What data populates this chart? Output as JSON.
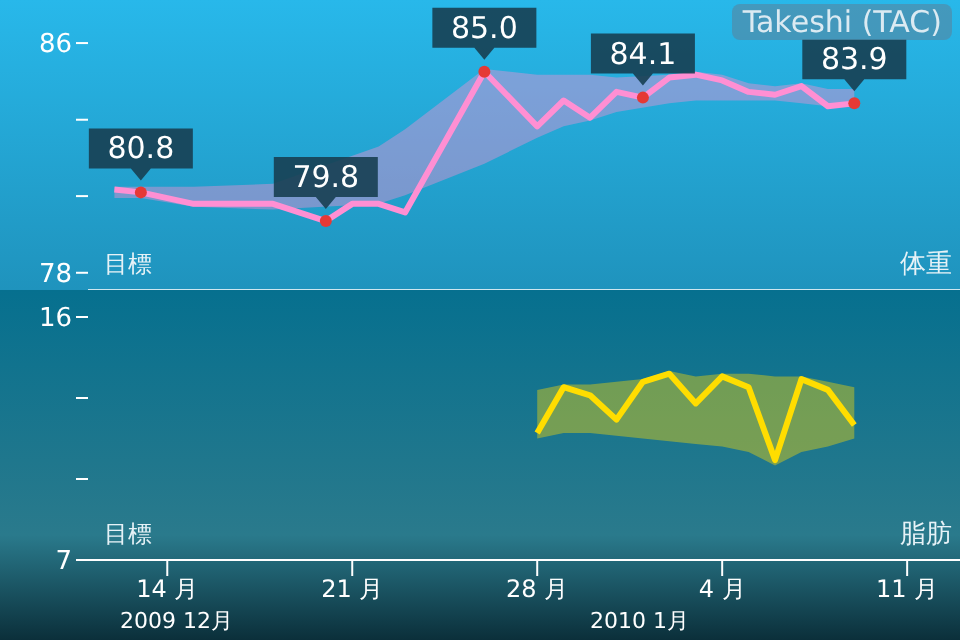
{
  "chart_data": [
    {
      "type": "line",
      "title": "Takeshi (TAC)",
      "ylabel": "体重",
      "annotations": [
        "目標"
      ],
      "tick_labels": "y",
      "grid": false,
      "legend": false,
      "x": [
        "2009-12-12",
        "2009-12-13",
        "2009-12-15",
        "2009-12-18",
        "2009-12-20",
        "2009-12-21",
        "2009-12-22",
        "2009-12-23",
        "2009-12-26",
        "2009-12-28",
        "2009-12-29",
        "2009-12-30",
        "2009-12-31",
        "2010-01-01",
        "2010-01-02",
        "2010-01-03",
        "2010-01-04",
        "2010-01-05",
        "2010-01-06",
        "2010-01-07",
        "2010-01-08",
        "2010-01-09"
      ],
      "xlim": [
        "2009-12-11",
        "2010-01-13"
      ],
      "ylim": [
        77.4,
        87.5
      ],
      "yticks": [
        78,
        {
          "value": 80.67,
          "label": null
        },
        {
          "value": 83.33,
          "label": null
        },
        86
      ],
      "series": [
        {
          "color": "#ff8fd3",
          "values": [
            80.9,
            80.8,
            80.4,
            80.4,
            79.8,
            80.4,
            80.4,
            80.1,
            85.0,
            83.1,
            84.0,
            83.4,
            84.3,
            84.1,
            84.8,
            84.9,
            84.7,
            84.3,
            84.2,
            84.5,
            83.8,
            83.9
          ],
          "lower": [
            80.6,
            80.6,
            80.3,
            80.2,
            null,
            null,
            80.4,
            80.7,
            81.8,
            82.7,
            83.1,
            83.3,
            83.6,
            null,
            83.9,
            84.0,
            84.0,
            84.0,
            84.0,
            83.9,
            83.8,
            83.8
          ],
          "upper": [
            81.0,
            81.0,
            81.0,
            81.1,
            null,
            null,
            82.4,
            83.0,
            85.1,
            84.9,
            84.9,
            84.9,
            84.8,
            null,
            84.9,
            85.0,
            84.9,
            84.6,
            84.5,
            84.6,
            84.4,
            84.4
          ],
          "value_labels": [
            null,
            "80.8",
            null,
            null,
            "79.8",
            null,
            null,
            null,
            "85.0",
            null,
            null,
            null,
            null,
            "84.1",
            null,
            null,
            null,
            null,
            null,
            null,
            null,
            "83.9"
          ]
        }
      ]
    },
    {
      "type": "line",
      "ylabel": "脂肪",
      "annotations": [
        "目標",
        "2009 12月",
        "2010 1月"
      ],
      "grid": false,
      "legend": false,
      "x": [
        "2009-12-28",
        "2009-12-29",
        "2009-12-30",
        "2009-12-31",
        "2010-01-01",
        "2010-01-02",
        "2010-01-03",
        "2010-01-04",
        "2010-01-05",
        "2010-01-06",
        "2010-01-07",
        "2010-01-08",
        "2010-01-09"
      ],
      "xlim": [
        "2009-12-11",
        "2010-01-13"
      ],
      "xticks": [
        {
          "value": "2009-12-14",
          "label": "14 月"
        },
        {
          "value": "2009-12-21",
          "label": "21 月"
        },
        {
          "value": "2009-12-28",
          "label": "28 月"
        },
        {
          "value": "2010-01-04",
          "label": "4 月"
        },
        {
          "value": "2010-01-11",
          "label": "11 月"
        }
      ],
      "ylim": [
        7,
        17
      ],
      "yticks": [
        7,
        {
          "value": 10,
          "label": null
        },
        {
          "value": 13,
          "label": null
        },
        16
      ],
      "series": [
        {
          "color": "#ffdd00",
          "values": [
            11.7,
            13.4,
            13.1,
            12.2,
            13.6,
            13.9,
            12.8,
            13.8,
            13.4,
            10.7,
            13.7,
            13.3,
            12.0
          ],
          "lower": [
            11.5,
            11.7,
            11.7,
            11.6,
            11.5,
            11.4,
            11.3,
            11.2,
            11.0,
            10.5,
            11.0,
            11.2,
            11.5
          ],
          "upper": [
            13.3,
            13.5,
            13.5,
            13.6,
            13.7,
            14.0,
            13.8,
            13.9,
            13.9,
            13.8,
            13.8,
            13.6,
            13.4
          ]
        }
      ]
    }
  ]
}
